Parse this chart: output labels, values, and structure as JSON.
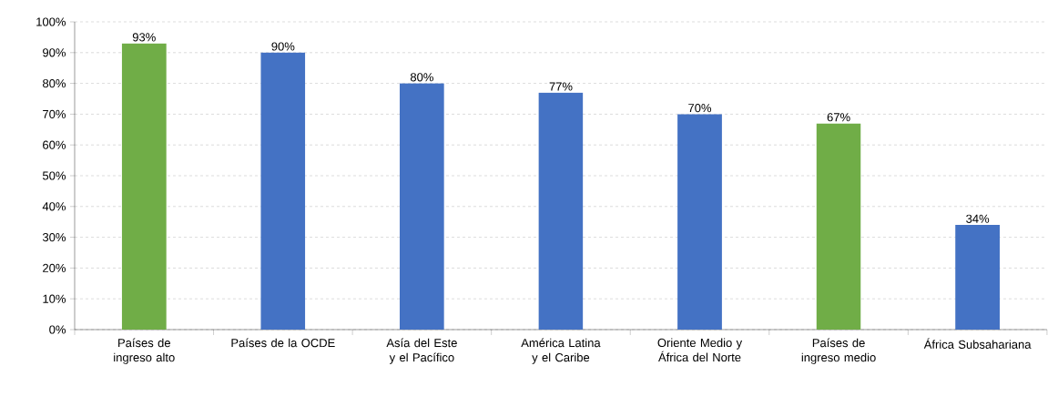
{
  "chart_data": {
    "type": "bar",
    "categories": [
      "Países de ingreso alto",
      "Países de la OCDE",
      "Asía del Este y el Pacífico",
      "América Latina y el Caribe",
      "Oriente Medio y África del Norte",
      "Países de ingreso medio",
      "África Subsahariana"
    ],
    "values": [
      93,
      90,
      80,
      77,
      70,
      67,
      34
    ],
    "colors": [
      "#70ad47",
      "#4472c4",
      "#4472c4",
      "#4472c4",
      "#4472c4",
      "#70ad47",
      "#4472c4"
    ],
    "value_labels": [
      "93%",
      "90%",
      "80%",
      "77%",
      "70%",
      "67%",
      "34%"
    ],
    "ylim": [
      0,
      100
    ],
    "yticks": [
      {
        "value": 0,
        "label": "0%"
      },
      {
        "value": 10,
        "label": "10%"
      },
      {
        "value": 20,
        "label": "20%"
      },
      {
        "value": 30,
        "label": "30%"
      },
      {
        "value": 40,
        "label": "40%"
      },
      {
        "value": 50,
        "label": "50%"
      },
      {
        "value": 60,
        "label": "60%"
      },
      {
        "value": 70,
        "label": "70%"
      },
      {
        "value": 80,
        "label": "80%"
      },
      {
        "value": 90,
        "label": "90%"
      },
      {
        "value": 100,
        "label": "100%"
      }
    ],
    "grid": "y"
  }
}
